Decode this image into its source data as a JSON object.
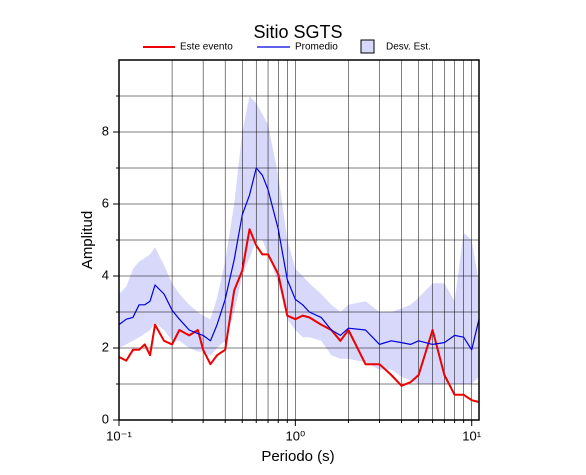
{
  "chart_data": {
    "type": "line",
    "title": "Sitio SGTS",
    "x_label": "Periodo (s)",
    "y_label": "Amplitud",
    "x": [
      0.1,
      0.11,
      0.12,
      0.13,
      0.14,
      0.15,
      0.16,
      0.18,
      0.2,
      0.22,
      0.25,
      0.28,
      0.3,
      0.33,
      0.36,
      0.4,
      0.45,
      0.5,
      0.55,
      0.6,
      0.65,
      0.7,
      0.8,
      0.9,
      1.0,
      1.1,
      1.2,
      1.4,
      1.6,
      1.8,
      2.0,
      2.5,
      3,
      3.5,
      4,
      4.5,
      5,
      6,
      7,
      8,
      9,
      10,
      11
    ],
    "series": [
      {
        "name": "Este evento",
        "color": "#ee0000",
        "width": 2,
        "values": [
          1.75,
          1.65,
          1.95,
          1.95,
          2.1,
          1.8,
          2.65,
          2.2,
          2.1,
          2.5,
          2.35,
          2.5,
          1.95,
          1.55,
          1.8,
          1.95,
          3.6,
          4.15,
          5.3,
          4.85,
          4.6,
          4.6,
          4.05,
          2.9,
          2.8,
          2.9,
          2.85,
          2.65,
          2.5,
          2.2,
          2.5,
          1.55,
          1.55,
          1.25,
          0.95,
          1.05,
          1.25,
          2.5,
          1.25,
          0.7,
          0.7,
          0.55,
          0.5
        ]
      },
      {
        "name": "Promedio",
        "color": "#0000dd",
        "width": 1.2,
        "values": [
          2.65,
          2.8,
          2.85,
          3.2,
          3.2,
          3.3,
          3.75,
          3.5,
          3.05,
          2.8,
          2.5,
          2.4,
          2.35,
          2.2,
          2.65,
          3.35,
          4.45,
          5.7,
          6.25,
          7.0,
          6.8,
          6.4,
          5.3,
          3.9,
          3.35,
          3.2,
          3.0,
          2.85,
          2.5,
          2.35,
          2.55,
          2.5,
          2.1,
          2.2,
          2.15,
          2.1,
          2.2,
          2.1,
          2.15,
          2.35,
          2.3,
          1.95,
          2.8
        ]
      }
    ],
    "band": {
      "name": "Desv. Est.",
      "color": "#d8d8fa",
      "lower": [
        2.0,
        2.1,
        2.2,
        2.3,
        2.4,
        2.5,
        2.7,
        2.5,
        2.2,
        2.2,
        2.0,
        1.9,
        1.9,
        1.8,
        2.0,
        2.2,
        3.0,
        4.0,
        4.5,
        5.0,
        5.0,
        4.6,
        3.8,
        2.8,
        2.5,
        2.3,
        2.3,
        2.2,
        1.8,
        1.7,
        1.7,
        1.6,
        1.4,
        1.4,
        1.2,
        1.1,
        1.0,
        1.0,
        1.0,
        1.0,
        1.0,
        1.0,
        1.2
      ],
      "upper": [
        3.5,
        3.7,
        4.2,
        4.4,
        4.5,
        4.6,
        4.8,
        4.3,
        3.8,
        3.5,
        3.2,
        3.0,
        2.9,
        2.8,
        3.4,
        4.4,
        6.0,
        8.0,
        9.0,
        8.8,
        8.5,
        8.2,
        6.8,
        5.0,
        4.2,
        4.0,
        3.8,
        3.5,
        3.2,
        3.0,
        3.2,
        3.3,
        3.0,
        3.0,
        3.1,
        3.2,
        3.4,
        3.8,
        3.8,
        3.3,
        5.2,
        5.0,
        3.8
      ]
    },
    "xscale": "log",
    "xlim": [
      0.1,
      11
    ],
    "ylim": [
      0,
      10
    ],
    "xticks": [
      {
        "value": 0.1,
        "label": "10⁻¹"
      },
      {
        "value": 1,
        "label": "10⁰"
      },
      {
        "value": 10,
        "label": "10¹"
      }
    ],
    "xminor": [
      0.2,
      0.3,
      0.4,
      0.5,
      0.6,
      0.7,
      0.8,
      0.9,
      2,
      3,
      4,
      5,
      6,
      7,
      8,
      9
    ],
    "yticks": [
      0,
      2,
      4,
      6,
      8
    ],
    "yminor": [
      1,
      3,
      5,
      7,
      9
    ],
    "grid": true,
    "legend": "top"
  }
}
